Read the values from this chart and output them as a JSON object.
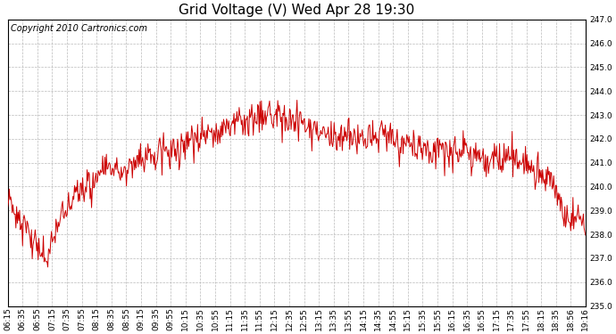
{
  "title": "Grid Voltage (V) Wed Apr 28 19:30",
  "copyright": "Copyright 2010 Cartronics.com",
  "line_color": "#cc0000",
  "bg_color": "#ffffff",
  "plot_bg_color": "#ffffff",
  "grid_color": "#bbbbbb",
  "ylim": [
    235.0,
    247.0
  ],
  "yticks": [
    235.0,
    236.0,
    237.0,
    238.0,
    239.0,
    240.0,
    241.0,
    242.0,
    243.0,
    244.0,
    245.0,
    246.0,
    247.0
  ],
  "xtick_labels": [
    "06:15",
    "06:35",
    "06:55",
    "07:15",
    "07:35",
    "07:55",
    "08:15",
    "08:35",
    "08:55",
    "09:15",
    "09:35",
    "09:55",
    "10:15",
    "10:35",
    "10:55",
    "11:15",
    "11:35",
    "11:55",
    "12:15",
    "12:35",
    "12:55",
    "13:15",
    "13:35",
    "13:55",
    "14:15",
    "14:35",
    "14:55",
    "15:15",
    "15:35",
    "15:55",
    "16:15",
    "16:35",
    "16:55",
    "17:15",
    "17:35",
    "17:55",
    "18:15",
    "18:35",
    "18:56",
    "19:16"
  ],
  "title_fontsize": 11,
  "tick_fontsize": 6.5,
  "copyright_fontsize": 7
}
